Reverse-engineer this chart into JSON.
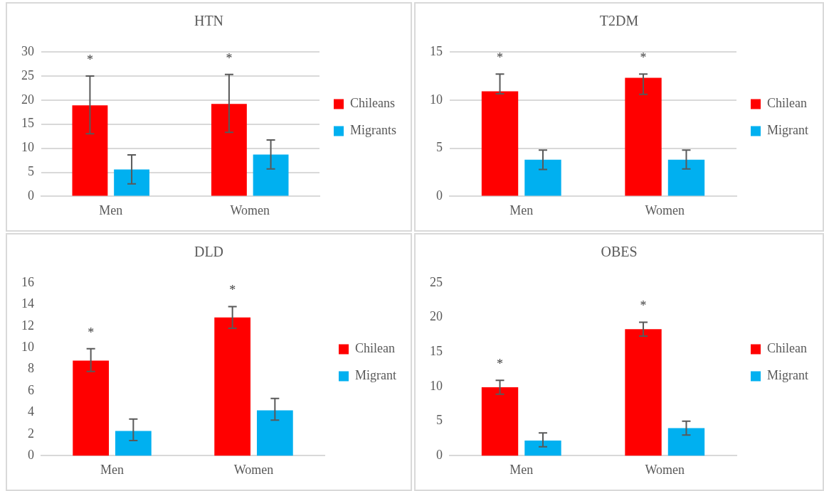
{
  "chart_data": [
    {
      "type": "bar",
      "title": "HTN",
      "categories": [
        "Men",
        "Women"
      ],
      "series": [
        {
          "name": "Chileans",
          "color": "#ff0000",
          "values": [
            18.9,
            19.2
          ],
          "errors": [
            [
              13,
              25
            ],
            [
              13.3,
              25.3
            ]
          ]
        },
        {
          "name": "Migrants",
          "color": "#00b0f0",
          "values": [
            5.6,
            8.7
          ],
          "errors": [
            [
              2.6,
              8.6
            ],
            [
              5.7,
              11.7
            ]
          ]
        }
      ],
      "ylim": [
        0,
        30
      ],
      "yticks": [
        0,
        5,
        10,
        15,
        20,
        25,
        30
      ],
      "grid": "y",
      "legend": "right",
      "annotations": [
        "*",
        "*"
      ]
    },
    {
      "type": "bar",
      "title": "T2DM",
      "categories": [
        "Men",
        "Women"
      ],
      "series": [
        {
          "name": "Chilean",
          "color": "#ff0000",
          "values": [
            10.9,
            12.3
          ],
          "errors": [
            [
              10.65,
              12.7
            ],
            [
              10.6,
              12.7
            ]
          ]
        },
        {
          "name": "Migrant",
          "color": "#00b0f0",
          "values": [
            3.8,
            3.8
          ],
          "errors": [
            [
              2.8,
              4.8
            ],
            [
              2.85,
              4.8
            ]
          ]
        }
      ],
      "ylim": [
        0,
        15
      ],
      "yticks": [
        0,
        5,
        10,
        15
      ],
      "grid": "y",
      "legend": "right",
      "annotations": [
        "*",
        "*"
      ]
    },
    {
      "type": "bar",
      "title": "DLD",
      "categories": [
        "Men",
        "Women"
      ],
      "series": [
        {
          "name": "Chilean",
          "color": "#ff0000",
          "values": [
            8.8,
            12.8
          ],
          "errors": [
            [
              7.8,
              9.9
            ],
            [
              11.8,
              13.8
            ]
          ]
        },
        {
          "name": "Migrant",
          "color": "#00b0f0",
          "values": [
            2.3,
            4.2
          ],
          "errors": [
            [
              1.4,
              3.4
            ],
            [
              3.3,
              5.3
            ]
          ]
        }
      ],
      "ylim": [
        0,
        16
      ],
      "yticks": [
        0,
        2,
        4,
        6,
        8,
        10,
        12,
        14,
        16
      ],
      "grid": false,
      "legend": "right",
      "annotations": [
        "*",
        "*"
      ]
    },
    {
      "type": "bar",
      "title": "OBES",
      "categories": [
        "Men",
        "Women"
      ],
      "series": [
        {
          "name": "Chilean",
          "color": "#ff0000",
          "values": [
            9.9,
            18.3
          ],
          "errors": [
            [
              8.9,
              10.9
            ],
            [
              17.3,
              19.3
            ]
          ]
        },
        {
          "name": "Migrant",
          "color": "#00b0f0",
          "values": [
            2.2,
            4.0
          ],
          "errors": [
            [
              1.3,
              3.3
            ],
            [
              3.0,
              5.0
            ]
          ]
        }
      ],
      "ylim": [
        0,
        25
      ],
      "yticks": [
        0,
        5,
        10,
        15,
        20,
        25
      ],
      "grid": false,
      "legend": "right",
      "annotations": [
        "*",
        "*"
      ]
    }
  ]
}
